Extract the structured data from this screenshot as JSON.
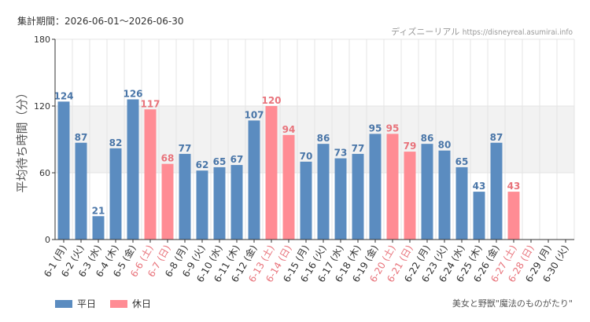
{
  "header": {
    "period_label": "集計期間：2026-06-01〜2026-06-30",
    "source_site": "ディズニーリアル",
    "source_url": "https://disneyreal.asumirai.info"
  },
  "footer": {
    "attraction": "美女と野獣\"魔法のものがたり\""
  },
  "legend": [
    {
      "label": "平日",
      "color": "#5b8cc0"
    },
    {
      "label": "休日",
      "color": "#ff8c94"
    }
  ],
  "colors": {
    "weekday": "#5b8cc0",
    "holiday": "#ff8c94",
    "weekday_text": "#4a76a8",
    "holiday_text": "#e8737b",
    "band": "#f2f2f2",
    "grid": "#e4e4e4",
    "axis": "#333333"
  },
  "chart_data": {
    "type": "bar",
    "ylabel": "平均待ち時間（分）",
    "ylim": [
      0,
      180
    ],
    "yticks": [
      0,
      60,
      120,
      180
    ],
    "grid": true,
    "legend_position": "bottom-left",
    "categories": [
      "6-1 (月)",
      "6-2 (火)",
      "6-3 (水)",
      "6-4 (木)",
      "6-5 (金)",
      "6-6 (土)",
      "6-7 (日)",
      "6-8 (月)",
      "6-9 (火)",
      "6-10 (水)",
      "6-11 (木)",
      "6-12 (金)",
      "6-13 (土)",
      "6-14 (日)",
      "6-15 (月)",
      "6-16 (火)",
      "6-17 (水)",
      "6-18 (木)",
      "6-19 (金)",
      "6-20 (土)",
      "6-21 (日)",
      "6-22 (月)",
      "6-23 (火)",
      "6-24 (水)",
      "6-25 (木)",
      "6-26 (金)",
      "6-27 (土)",
      "6-28 (日)",
      "6-29 (月)",
      "6-30 (火)"
    ],
    "values": [
      124,
      87,
      21,
      82,
      126,
      117,
      68,
      77,
      62,
      65,
      67,
      107,
      120,
      94,
      70,
      86,
      73,
      77,
      95,
      95,
      79,
      86,
      80,
      65,
      43,
      87,
      43,
      null,
      null,
      null
    ],
    "day_type": [
      "平日",
      "平日",
      "平日",
      "平日",
      "平日",
      "休日",
      "休日",
      "平日",
      "平日",
      "平日",
      "平日",
      "平日",
      "休日",
      "休日",
      "平日",
      "平日",
      "平日",
      "平日",
      "平日",
      "休日",
      "休日",
      "平日",
      "平日",
      "平日",
      "平日",
      "平日",
      "休日",
      "休日",
      "平日",
      "平日"
    ]
  }
}
